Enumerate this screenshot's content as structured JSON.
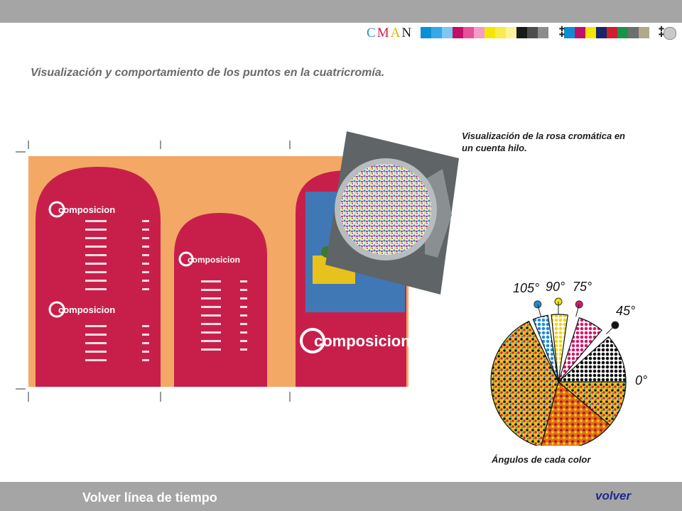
{
  "cman": {
    "c": "C",
    "m": "M",
    "a": "A",
    "n": "N"
  },
  "colors": {
    "topbar": "#a5a5a5",
    "background_orange": "#f3a866",
    "crimson": "#c81f4a",
    "accent_link": "#1f2a8c",
    "swatches": [
      "#0a8fd7",
      "#37a8e6",
      "#7cc8f0",
      "#c01067",
      "#e6529a",
      "#f29cc7",
      "#f5e600",
      "#f9ec4b",
      "#fbf39a",
      "#1a1a1a",
      "#4d4d4d",
      "#8c8c8c",
      "#0a8fd7",
      "#c01067",
      "#f5e600",
      "#19246a",
      "#d21c2d",
      "#18934a",
      "#6e6e6e",
      "#b0a98a"
    ]
  },
  "headline": "Visualización y comportamiento de los puntos en la cuatricromía.",
  "captions": {
    "loupe": "Visualización de la rosa cromática en un cuenta hilo.",
    "angles": "Ángulos de cada color"
  },
  "poster": {
    "brand": "composicion"
  },
  "angle_rose": {
    "labels": [
      "105°",
      "90°",
      "75°",
      "45°",
      "0°"
    ],
    "marker_colors": [
      "#1b8fdc",
      "#f5e600",
      "#d8176b",
      "#111111"
    ]
  },
  "footer": {
    "back_timeline": "Volver línea de tiempo",
    "back": "volver"
  }
}
